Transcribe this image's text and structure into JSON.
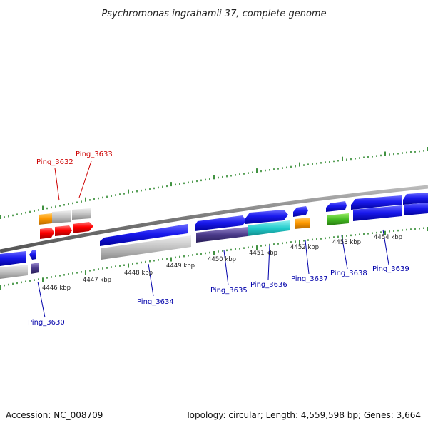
{
  "title": "Psychromonas ingrahamii 37, complete genome",
  "footer": {
    "accession": "Accession: NC_008709",
    "topology": "Topology: circular; Length: 4,559,598 bp; Genes: 3,664"
  },
  "scale_labels": [
    "4446 kbp",
    "4447 kbp",
    "4448 kbp",
    "4449 kbp",
    "4450 kbp",
    "4451 kbp",
    "4452 kbp",
    "4453 kbp",
    "4454 kbp"
  ],
  "gene_labels_forward": [
    "Ping_3632",
    "Ping_3633"
  ],
  "gene_labels_reverse": [
    "Ping_3630",
    "Ping_3634",
    "Ping_3635",
    "Ping_3636",
    "Ping_3637",
    "Ping_3638",
    "Ping_3639"
  ],
  "colors": {
    "forward_label": "#cc0000",
    "reverse_label": "#0000aa",
    "cds": "#1a1aee",
    "rna": "#ff0000",
    "other": "#ff9900",
    "pseudo": "#bbbbbb",
    "cyan": "#22cccc",
    "green": "#44bb22",
    "tick": "#117711",
    "backbone": "#888888"
  }
}
